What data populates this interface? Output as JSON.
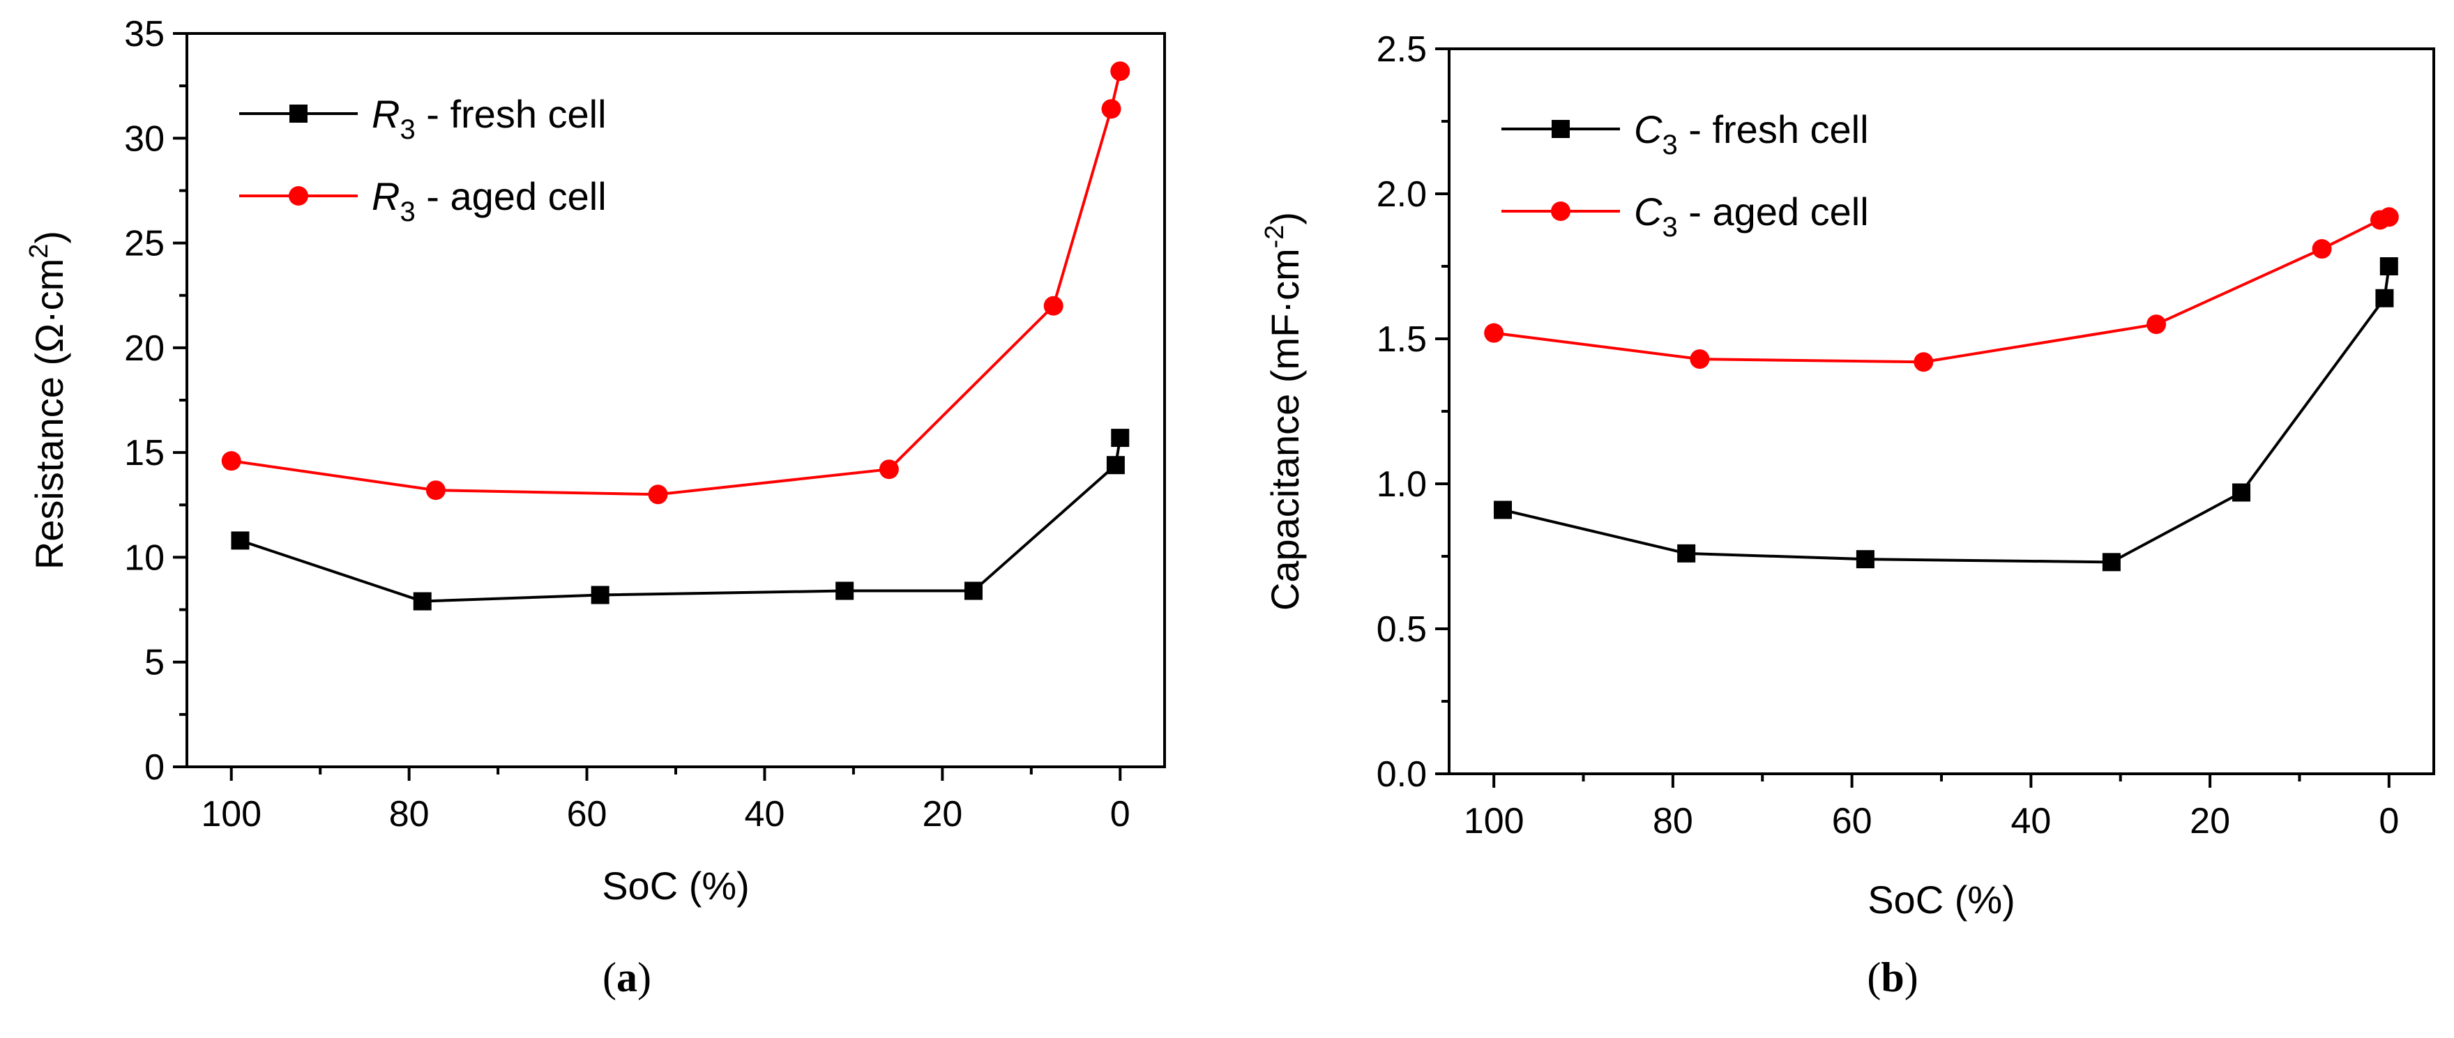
{
  "chart_data": [
    {
      "type": "line",
      "panel_label": "a",
      "xlabel": "SoC (%)",
      "ylabel": "Resistance (Ω·cm²)",
      "ylabel_parts": {
        "prefix": "Resistance (Ω",
        "dot": "·",
        "unit": "cm",
        "sup": "2",
        "suffix": ")"
      },
      "xlim": [
        105,
        -5
      ],
      "ylim": [
        0,
        35
      ],
      "x_ticks": [
        100,
        80,
        60,
        40,
        20,
        0
      ],
      "x_tick_labels": [
        "100",
        "80",
        "60",
        "40",
        "20",
        "0"
      ],
      "y_ticks": [
        0,
        5,
        10,
        15,
        20,
        25,
        30,
        35
      ],
      "y_tick_labels": [
        "0",
        "5",
        "10",
        "15",
        "20",
        "25",
        "30",
        "35"
      ],
      "legend_position": "top-left",
      "series": [
        {
          "name": "R3 - fresh cell",
          "symbol": "R",
          "subscript": "3",
          "legend_suffix": " - fresh cell",
          "color": "#000000",
          "marker": "square",
          "x": [
            99,
            78.5,
            58.5,
            31,
            16.5,
            0.5,
            0
          ],
          "y": [
            10.8,
            7.9,
            8.2,
            8.4,
            8.4,
            14.4,
            15.7
          ]
        },
        {
          "name": "R3 - aged cell",
          "symbol": "R",
          "subscript": "3",
          "legend_suffix": " - aged cell",
          "color": "#ff0000",
          "marker": "circle",
          "x": [
            100,
            77,
            52,
            26,
            7.5,
            1,
            0
          ],
          "y": [
            14.6,
            13.2,
            13.0,
            14.2,
            22.0,
            31.4,
            33.2
          ]
        }
      ]
    },
    {
      "type": "line",
      "panel_label": "b",
      "xlabel": "SoC (%)",
      "ylabel": "Capacitance (mF·cm⁻²)",
      "ylabel_parts": {
        "prefix": "Capacitance (mF",
        "dot": "·",
        "unit": "cm",
        "sup": "-2",
        "suffix": ")"
      },
      "xlim": [
        105,
        -5
      ],
      "ylim": [
        0,
        2.5
      ],
      "x_ticks": [
        100,
        80,
        60,
        40,
        20,
        0
      ],
      "x_tick_labels": [
        "100",
        "80",
        "60",
        "40",
        "20",
        "0"
      ],
      "y_ticks": [
        0,
        0.5,
        1.0,
        1.5,
        2.0,
        2.5
      ],
      "y_tick_labels": [
        "0.0",
        "0.5",
        "1.0",
        "1.5",
        "2.0",
        "2.5"
      ],
      "legend_position": "top-left",
      "series": [
        {
          "name": "C3 - fresh cell",
          "symbol": "C",
          "subscript": "3",
          "legend_suffix": " - fresh cell",
          "color": "#000000",
          "marker": "square",
          "x": [
            99,
            78.5,
            58.5,
            31,
            16.5,
            0.5,
            0
          ],
          "y": [
            0.91,
            0.76,
            0.74,
            0.73,
            0.97,
            1.64,
            1.75
          ]
        },
        {
          "name": "C3 - aged cell",
          "symbol": "C",
          "subscript": "3",
          "legend_suffix": " - aged cell",
          "color": "#ff0000",
          "marker": "circle",
          "x": [
            100,
            77,
            52,
            26,
            7.5,
            1,
            0
          ],
          "y": [
            1.52,
            1.43,
            1.42,
            1.55,
            1.81,
            1.91,
            1.92
          ]
        }
      ]
    }
  ]
}
